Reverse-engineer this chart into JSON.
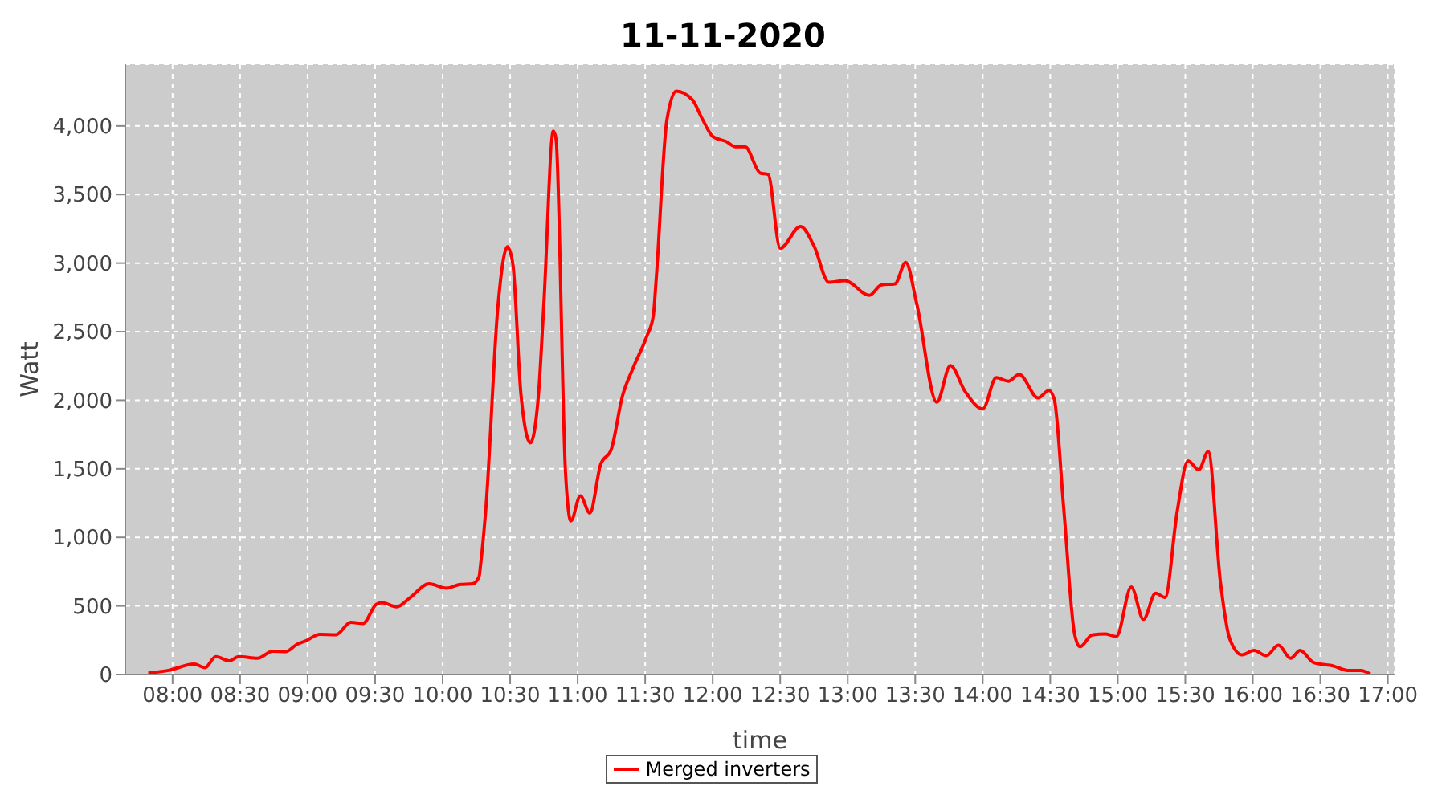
{
  "chart_data": {
    "type": "line",
    "title": "11-11-2020",
    "xlabel": "time",
    "ylabel": "Watt",
    "x": [
      7.82,
      7.97,
      8.16,
      8.24,
      8.32,
      8.42,
      8.49,
      8.63,
      8.74,
      8.84,
      8.92,
      8.99,
      9.09,
      9.21,
      9.32,
      9.41,
      9.51,
      9.55,
      9.66,
      9.76,
      9.9,
      10.03,
      10.13,
      10.22,
      10.27,
      10.28,
      10.32,
      10.41,
      10.48,
      10.52,
      10.58,
      10.65,
      10.71,
      10.75,
      10.82,
      10.84,
      10.91,
      10.95,
      11.02,
      11.09,
      11.17,
      11.25,
      11.33,
      11.41,
      11.51,
      11.56,
      11.58,
      11.66,
      11.73,
      11.85,
      11.92,
      12.0,
      12.1,
      12.17,
      12.24,
      12.35,
      12.41,
      12.5,
      12.65,
      12.75,
      12.86,
      12.98,
      13.16,
      13.25,
      13.35,
      13.43,
      13.51,
      13.66,
      13.76,
      13.87,
      14.0,
      14.1,
      14.19,
      14.27,
      14.41,
      14.49,
      14.53,
      14.6,
      14.68,
      14.72,
      14.81,
      14.91,
      14.99,
      15.1,
      15.19,
      15.28,
      15.35,
      15.44,
      15.52,
      15.6,
      15.67,
      15.76,
      15.83,
      15.92,
      16.01,
      16.1,
      16.19,
      16.28,
      16.35,
      16.45,
      16.6,
      16.7,
      16.8,
      16.87
    ],
    "series": [
      {
        "name": "Merged inverters",
        "color": "#ff0000",
        "values": [
          10,
          30,
          76,
          50,
          130,
          100,
          130,
          118,
          170,
          167,
          220,
          247,
          293,
          290,
          380,
          372,
          513,
          524,
          494,
          562,
          661,
          630,
          657,
          661,
          714,
          790,
          1208,
          2690,
          3119,
          2994,
          2043,
          1690,
          2043,
          2709,
          3962,
          3905,
          1474,
          1120,
          1303,
          1177,
          1531,
          1645,
          2025,
          2234,
          2462,
          2614,
          2860,
          4038,
          4254,
          4190,
          4057,
          3924,
          3886,
          3848,
          3848,
          3658,
          3647,
          3108,
          3267,
          3126,
          2860,
          2872,
          2765,
          2841,
          2849,
          3005,
          2709,
          1986,
          2253,
          2063,
          1937,
          2165,
          2139,
          2188,
          2017,
          2071,
          2006,
          1208,
          296,
          202,
          288,
          296,
          277,
          638,
          402,
          593,
          562,
          1189,
          1558,
          1493,
          1626,
          676,
          258,
          144,
          175,
          137,
          213,
          118,
          175,
          87,
          61,
          30,
          30,
          4
        ]
      }
    ],
    "xlim": [
      7.65,
      17.05
    ],
    "xticks": [
      {
        "value": 8,
        "label": "08:00"
      },
      {
        "value": 8.5,
        "label": "08:30"
      },
      {
        "value": 9,
        "label": "09:00"
      },
      {
        "value": 9.5,
        "label": "09:30"
      },
      {
        "value": 10,
        "label": "10:00"
      },
      {
        "value": 10.5,
        "label": "10:30"
      },
      {
        "value": 11,
        "label": "11:00"
      },
      {
        "value": 11.5,
        "label": "11:30"
      },
      {
        "value": 12,
        "label": "12:00"
      },
      {
        "value": 12.5,
        "label": "12:30"
      },
      {
        "value": 13,
        "label": "13:00"
      },
      {
        "value": 13.5,
        "label": "13:30"
      },
      {
        "value": 14,
        "label": "14:00"
      },
      {
        "value": 14.5,
        "label": "14:30"
      },
      {
        "value": 15,
        "label": "15:00"
      },
      {
        "value": 15.5,
        "label": "15:30"
      },
      {
        "value": 16,
        "label": "16:00"
      },
      {
        "value": 16.5,
        "label": "16:30"
      },
      {
        "value": 17,
        "label": "17:00"
      }
    ],
    "ylim": [
      0,
      4450
    ],
    "yticks": [
      0,
      500,
      {
        "value": 1000,
        "label": "1,000"
      },
      {
        "value": 1500,
        "label": "1,500"
      },
      {
        "value": 2000,
        "label": "2,000"
      },
      {
        "value": 2500,
        "label": "2,500"
      },
      {
        "value": 3000,
        "label": "3,000"
      },
      {
        "value": 3500,
        "label": "3,500"
      },
      {
        "value": 4000,
        "label": "4,000"
      }
    ],
    "grid": true,
    "legend": "bottom",
    "marker": "none",
    "line_style": "solid"
  }
}
